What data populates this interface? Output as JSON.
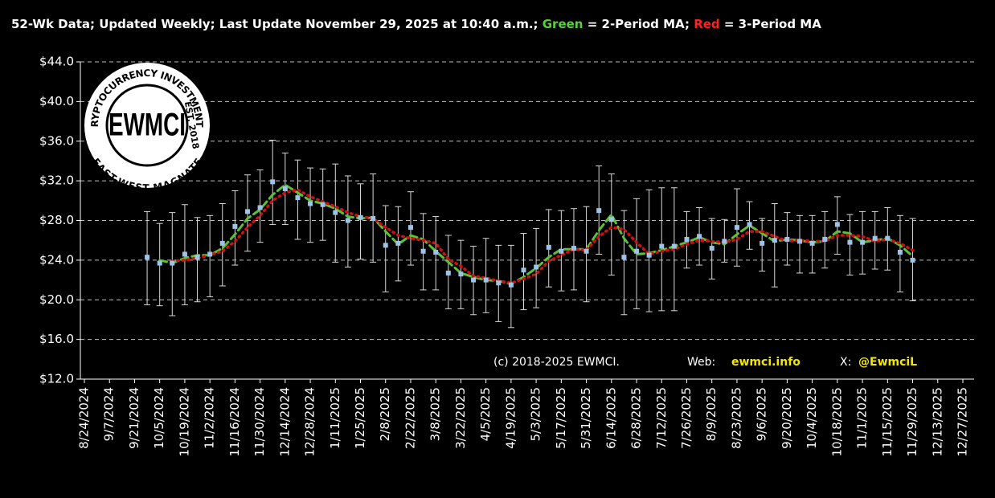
{
  "chart_data": {
    "type": "errorbar",
    "title_parts": [
      "52-Wk Data; Updated Weekly; Last Update November 29, 2025 at 10:40 a.m.; ",
      "Green",
      " = 2-Period MA; ",
      "Red",
      " = 3-Period MA"
    ],
    "footer": [
      "(c) 2018-2025 EWMCI.",
      "Web:",
      "ewmci.info",
      "X:",
      "@EwmciL"
    ],
    "logo": {
      "center": "EWMCI",
      "top": "CRYPTOCURRENCY INVESTMENTS",
      "right": "EST. 2018",
      "bottom": "EAST-WEST MAGNATE"
    },
    "x": [
      "9/28/2024",
      "10/5/2024",
      "10/12/2024",
      "10/19/2024",
      "10/26/2024",
      "11/2/2024",
      "11/9/2024",
      "11/16/2024",
      "11/23/2024",
      "11/30/2024",
      "12/7/2024",
      "12/14/2024",
      "12/21/2024",
      "12/28/2024",
      "1/4/2025",
      "1/11/2025",
      "1/18/2025",
      "1/25/2025",
      "2/1/2025",
      "2/8/2025",
      "2/15/2025",
      "2/22/2025",
      "3/1/2025",
      "3/8/2025",
      "3/15/2025",
      "3/22/2025",
      "3/29/2025",
      "4/5/2025",
      "4/12/2025",
      "4/19/2025",
      "4/26/2025",
      "5/3/2025",
      "5/10/2025",
      "5/17/2025",
      "5/24/2025",
      "5/31/2025",
      "6/7/2025",
      "6/14/2025",
      "6/21/2025",
      "6/28/2025",
      "7/5/2025",
      "7/12/2025",
      "7/19/2025",
      "7/26/2025",
      "8/2/2025",
      "8/9/2025",
      "8/16/2025",
      "8/23/2025",
      "8/30/2025",
      "9/6/2025",
      "9/13/2025",
      "9/20/2025",
      "9/27/2025",
      "10/4/2025",
      "10/11/2025",
      "10/18/2025",
      "10/25/2025",
      "11/1/2025",
      "11/8/2025",
      "11/15/2025",
      "11/22/2025",
      "11/29/2025"
    ],
    "values": [
      24.3,
      23.7,
      23.7,
      24.6,
      24.3,
      24.6,
      25.7,
      27.4,
      28.9,
      29.3,
      31.9,
      31.2,
      30.3,
      29.7,
      29.6,
      28.8,
      28.0,
      28.3,
      28.2,
      25.5,
      25.7,
      27.3,
      24.9,
      24.8,
      22.7,
      22.6,
      22.0,
      22.0,
      21.7,
      21.5,
      23.0,
      23.3,
      25.3,
      24.9,
      25.2,
      24.9,
      29.0,
      28.1,
      24.3,
      24.9,
      24.5,
      25.4,
      25.4,
      26.1,
      26.4,
      25.2,
      25.9,
      27.3,
      27.6,
      25.7,
      26.0,
      26.1,
      25.9,
      25.7,
      26.1,
      27.6,
      25.8,
      25.8,
      26.2,
      26.2,
      24.8,
      24.0
    ],
    "high": [
      28.9,
      27.7,
      28.8,
      29.6,
      28.3,
      28.5,
      29.7,
      31.0,
      32.6,
      33.1,
      36.1,
      34.8,
      34.1,
      33.3,
      33.2,
      33.7,
      32.5,
      31.7,
      32.7,
      29.5,
      29.4,
      30.9,
      28.7,
      28.4,
      26.5,
      26.0,
      25.4,
      26.2,
      25.5,
      25.5,
      26.7,
      27.2,
      29.1,
      29.0,
      29.2,
      29.4,
      33.5,
      32.7,
      29.0,
      30.2,
      31.1,
      31.3,
      31.3,
      28.9,
      29.3,
      28.2,
      28.1,
      31.2,
      29.9,
      28.2,
      29.7,
      28.8,
      28.5,
      28.5,
      28.9,
      30.4,
      28.6,
      28.9,
      28.9,
      29.3,
      28.5,
      28.2
    ],
    "low": [
      19.5,
      19.4,
      18.4,
      19.5,
      19.8,
      20.3,
      21.4,
      23.5,
      24.9,
      25.8,
      27.6,
      27.6,
      26.1,
      25.8,
      26.0,
      23.8,
      23.3,
      24.1,
      23.8,
      20.8,
      21.9,
      23.5,
      21.0,
      21.0,
      19.1,
      19.1,
      18.5,
      18.7,
      17.8,
      17.2,
      19.0,
      19.2,
      21.3,
      20.9,
      21.0,
      19.8,
      24.6,
      22.5,
      18.5,
      19.1,
      18.8,
      18.9,
      18.9,
      23.2,
      23.5,
      22.1,
      23.8,
      23.4,
      25.1,
      22.9,
      21.3,
      23.5,
      22.7,
      22.7,
      23.2,
      24.6,
      22.5,
      22.6,
      23.1,
      23.0,
      20.8,
      19.9
    ],
    "marker_color": "#9dc3e6",
    "errorbar_color": "#d9d9d9",
    "ma_series": [
      {
        "name": "2-Period MA",
        "color": "#5bc236",
        "values": [
          null,
          24.0,
          23.7,
          24.2,
          24.5,
          24.5,
          25.2,
          26.6,
          28.2,
          29.1,
          30.6,
          31.6,
          30.8,
          30.0,
          29.7,
          29.2,
          28.4,
          28.2,
          28.3,
          26.9,
          25.6,
          26.5,
          26.1,
          24.9,
          23.8,
          22.7,
          22.3,
          22.0,
          21.9,
          21.6,
          22.3,
          23.2,
          24.3,
          25.1,
          25.1,
          25.1,
          27.0,
          28.6,
          26.2,
          24.6,
          24.7,
          25.0,
          25.4,
          25.8,
          26.3,
          25.8,
          25.6,
          26.6,
          27.5,
          26.7,
          25.9,
          26.1,
          26.0,
          25.8,
          25.9,
          26.9,
          26.7,
          25.8,
          26.0,
          26.2,
          25.5,
          24.4
        ]
      },
      {
        "name": "3-Period MA",
        "color": "#d01010",
        "values": [
          null,
          null,
          23.9,
          24.0,
          24.2,
          24.5,
          24.9,
          25.9,
          27.3,
          28.5,
          30.0,
          30.8,
          31.1,
          30.4,
          29.9,
          29.4,
          28.8,
          28.4,
          28.2,
          27.3,
          26.5,
          26.2,
          26.0,
          25.7,
          24.1,
          23.4,
          22.4,
          22.2,
          21.9,
          21.7,
          22.1,
          22.6,
          23.9,
          24.5,
          25.1,
          25.0,
          26.4,
          27.3,
          27.1,
          25.8,
          24.6,
          24.9,
          25.1,
          25.6,
          26.0,
          25.9,
          25.8,
          26.1,
          26.9,
          26.9,
          26.4,
          25.9,
          26.0,
          25.9,
          25.9,
          26.5,
          26.5,
          26.4,
          25.9,
          26.1,
          25.7,
          25.0
        ]
      }
    ],
    "xlim": [
      "8/24/2024",
      "12/27/2025"
    ],
    "xticks": [
      "8/24/2024",
      "9/7/2024",
      "9/21/2024",
      "10/5/2024",
      "10/19/2024",
      "11/2/2024",
      "11/16/2024",
      "11/30/2024",
      "12/14/2024",
      "12/28/2024",
      "1/11/2025",
      "1/25/2025",
      "2/8/2025",
      "2/22/2025",
      "3/8/2025",
      "3/22/2025",
      "4/5/2025",
      "4/19/2025",
      "5/3/2025",
      "5/17/2025",
      "5/31/2025",
      "6/14/2025",
      "6/28/2025",
      "7/12/2025",
      "7/26/2025",
      "8/9/2025",
      "8/23/2025",
      "9/6/2025",
      "9/20/2025",
      "10/4/2025",
      "10/18/2025",
      "11/1/2025",
      "11/15/2025",
      "11/29/2025",
      "12/13/2025",
      "12/27/2025"
    ],
    "ylim": [
      12,
      44
    ],
    "yticks": [
      {
        "value": 12,
        "label": "$12.0"
      },
      {
        "value": 16,
        "label": "$16.0"
      },
      {
        "value": 20,
        "label": "$20.0"
      },
      {
        "value": 24,
        "label": "$24.0"
      },
      {
        "value": 28,
        "label": "$28.0"
      },
      {
        "value": 32,
        "label": "$32.0"
      },
      {
        "value": 36,
        "label": "$36.0"
      },
      {
        "value": 40,
        "label": "$40.0"
      },
      {
        "value": 44,
        "label": "$44.0"
      }
    ],
    "grid": true
  }
}
